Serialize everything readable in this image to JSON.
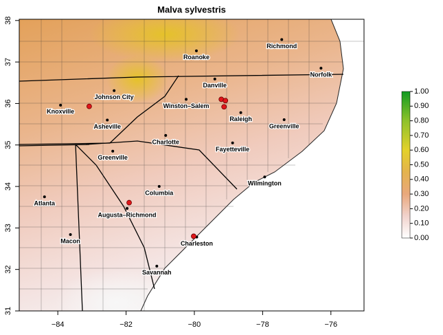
{
  "map": {
    "title": "Malva sylvestris",
    "xlim": [
      -85.13,
      -75.03
    ],
    "ylim": [
      31.0,
      38.03
    ],
    "xticks": [
      {
        "value": -84,
        "label": "−84"
      },
      {
        "value": -82,
        "label": "−82"
      },
      {
        "value": -80,
        "label": "−80"
      },
      {
        "value": -78,
        "label": "−78"
      },
      {
        "value": -76,
        "label": "−76"
      }
    ],
    "yticks": [
      31,
      32,
      33,
      34,
      35,
      36,
      37,
      38
    ],
    "cities": [
      {
        "name": "Richmond",
        "lon": -77.44,
        "lat": 37.54
      },
      {
        "name": "Roanoke",
        "lon": -79.94,
        "lat": 37.27
      },
      {
        "name": "Norfolk",
        "lon": -76.29,
        "lat": 36.85
      },
      {
        "name": "Danville",
        "lon": -79.4,
        "lat": 36.59
      },
      {
        "name": "Johnson City",
        "lon": -82.35,
        "lat": 36.31
      },
      {
        "name": "Knoxville",
        "lon": -83.92,
        "lat": 35.96
      },
      {
        "name": "Winston–Salem",
        "lon": -80.24,
        "lat": 36.1
      },
      {
        "name": "Raleigh",
        "lon": -78.64,
        "lat": 35.78
      },
      {
        "name": "Asheville",
        "lon": -82.55,
        "lat": 35.6
      },
      {
        "name": "Greenville",
        "lon": -77.37,
        "lat": 35.61
      },
      {
        "name": "Charlotte",
        "lon": -80.84,
        "lat": 35.23
      },
      {
        "name": "Fayetteville",
        "lon": -78.88,
        "lat": 35.05
      },
      {
        "name": "Greenville",
        "lon": -82.39,
        "lat": 34.85
      },
      {
        "name": "Wilmington",
        "lon": -77.94,
        "lat": 34.23
      },
      {
        "name": "Columbia",
        "lon": -81.03,
        "lat": 34.0
      },
      {
        "name": "Atlanta",
        "lon": -84.39,
        "lat": 33.75
      },
      {
        "name": "Augusta–Richmond",
        "lon": -81.97,
        "lat": 33.47
      },
      {
        "name": "Macon",
        "lon": -83.63,
        "lat": 32.84
      },
      {
        "name": "Charleston",
        "lon": -79.93,
        "lat": 32.78
      },
      {
        "name": "Savannah",
        "lon": -81.1,
        "lat": 32.08
      }
    ],
    "observations": [
      {
        "lon": -83.08,
        "lat": 35.93
      },
      {
        "lon": -81.91,
        "lat": 33.61
      },
      {
        "lon": -79.21,
        "lat": 36.1
      },
      {
        "lon": -79.09,
        "lat": 36.07
      },
      {
        "lon": -79.13,
        "lat": 35.92
      },
      {
        "lon": -80.02,
        "lat": 32.8
      }
    ],
    "colorbar": {
      "lim": [
        0,
        1
      ],
      "ticks": [
        {
          "value": 0,
          "label": "0.00"
        },
        {
          "value": 0.1,
          "label": "0.10"
        },
        {
          "value": 0.2,
          "label": "0.20"
        },
        {
          "value": 0.3,
          "label": "0.30"
        },
        {
          "value": 0.4,
          "label": "0.40"
        },
        {
          "value": 0.5,
          "label": "0.50"
        },
        {
          "value": 0.6,
          "label": "0.60"
        },
        {
          "value": 0.7,
          "label": "0.70"
        },
        {
          "value": 0.8,
          "label": "0.80"
        },
        {
          "value": 0.9,
          "label": "0.90"
        },
        {
          "value": 1,
          "label": "1.00"
        }
      ]
    }
  }
}
